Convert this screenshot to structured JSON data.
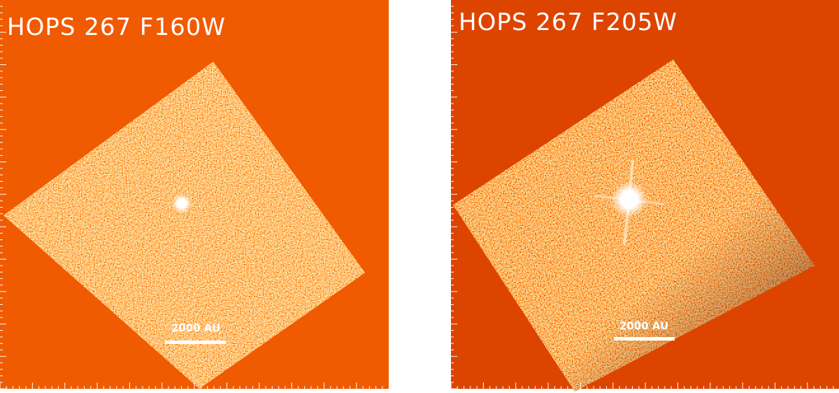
{
  "panels": [
    {
      "label": "HOPS 267 F160W",
      "scale_bar_label": "2000 AU"
    },
    {
      "label": "HOPS 267 F205W",
      "scale_bar_label": "2000 AU"
    }
  ]
}
